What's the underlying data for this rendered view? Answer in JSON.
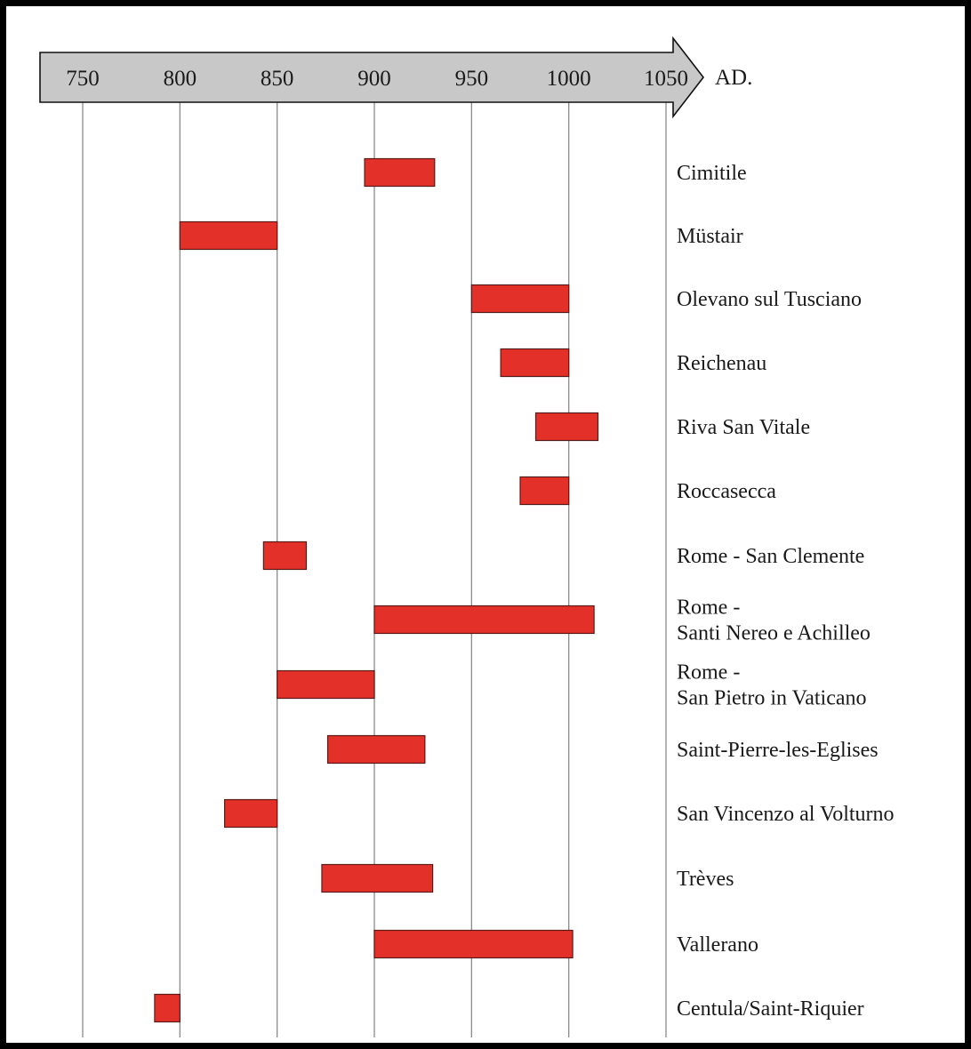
{
  "chart_data": {
    "type": "bar",
    "orientation": "horizontal-range",
    "axis_unit": "AD.",
    "x_ticks": [
      750,
      800,
      850,
      900,
      950,
      1000,
      1050
    ],
    "xlim": [
      750,
      1050
    ],
    "grid": true,
    "series": [
      {
        "values": [
          {
            "label": [
              "Cimitile"
            ],
            "start": 895,
            "end": 931
          },
          {
            "label": [
              "Müstair"
            ],
            "start": 800,
            "end": 850
          },
          {
            "label": [
              "Olevano sul Tusciano"
            ],
            "start": 950,
            "end": 1000
          },
          {
            "label": [
              "Reichenau"
            ],
            "start": 965,
            "end": 1000
          },
          {
            "label": [
              "Riva San Vitale"
            ],
            "start": 983,
            "end": 1015
          },
          {
            "label": [
              "Roccasecca"
            ],
            "start": 975,
            "end": 1000
          },
          {
            "label": [
              "Rome - San Clemente"
            ],
            "start": 843,
            "end": 865
          },
          {
            "label": [
              "Rome -",
              "Santi Nereo e Achilleo"
            ],
            "start": 900,
            "end": 1013
          },
          {
            "label": [
              "Rome -",
              "San Pietro in Vaticano"
            ],
            "start": 850,
            "end": 900
          },
          {
            "label": [
              "Saint-Pierre-les-Eglises"
            ],
            "start": 876,
            "end": 926
          },
          {
            "label": [
              "San Vincenzo al Volturno"
            ],
            "start": 823,
            "end": 850
          },
          {
            "label": [
              "Trèves"
            ],
            "start": 873,
            "end": 930
          },
          {
            "label": [
              "Vallerano"
            ],
            "start": 900,
            "end": 1002
          },
          {
            "label": [
              "Centula/Saint-Riquier"
            ],
            "start": 787,
            "end": 800
          }
        ]
      }
    ]
  }
}
